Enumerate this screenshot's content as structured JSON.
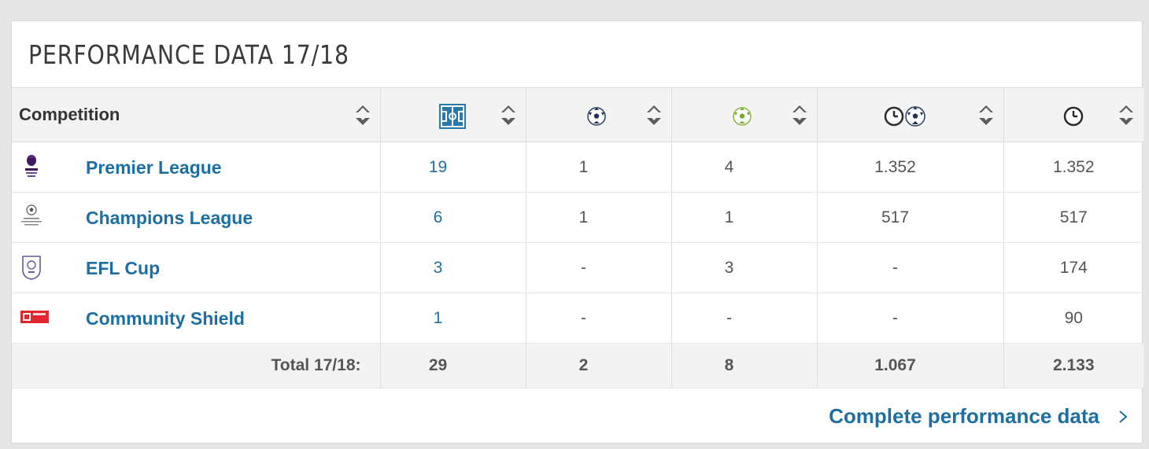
{
  "title": "PERFORMANCE DATA 17/18",
  "columns": {
    "competition": "Competition",
    "icons": [
      "appearances-icon",
      "goals-icon",
      "assists-icon",
      "minutes-per-goal-icon",
      "minutes-played-icon"
    ]
  },
  "colors": {
    "link": "#1d6fa1",
    "header_bg": "#f3f3f3",
    "pitch": "#2878a8"
  },
  "rows": [
    {
      "competition": "Premier League",
      "logo": "premier-league-logo",
      "apps": "19",
      "goals": "1",
      "assists": "4",
      "min_per_goal": "1.352",
      "minutes": "1.352"
    },
    {
      "competition": "Champions League",
      "logo": "champions-league-logo",
      "apps": "6",
      "goals": "1",
      "assists": "1",
      "min_per_goal": "517",
      "minutes": "517"
    },
    {
      "competition": "EFL Cup",
      "logo": "efl-cup-logo",
      "apps": "3",
      "goals": "-",
      "assists": "3",
      "min_per_goal": "-",
      "minutes": "174"
    },
    {
      "competition": "Community Shield",
      "logo": "community-shield-logo",
      "apps": "1",
      "goals": "-",
      "assists": "-",
      "min_per_goal": "-",
      "minutes": "90"
    }
  ],
  "total": {
    "label": "Total 17/18:",
    "apps": "29",
    "goals": "2",
    "assists": "8",
    "min_per_goal": "1.067",
    "minutes": "2.133"
  },
  "footer_link": "Complete performance data"
}
